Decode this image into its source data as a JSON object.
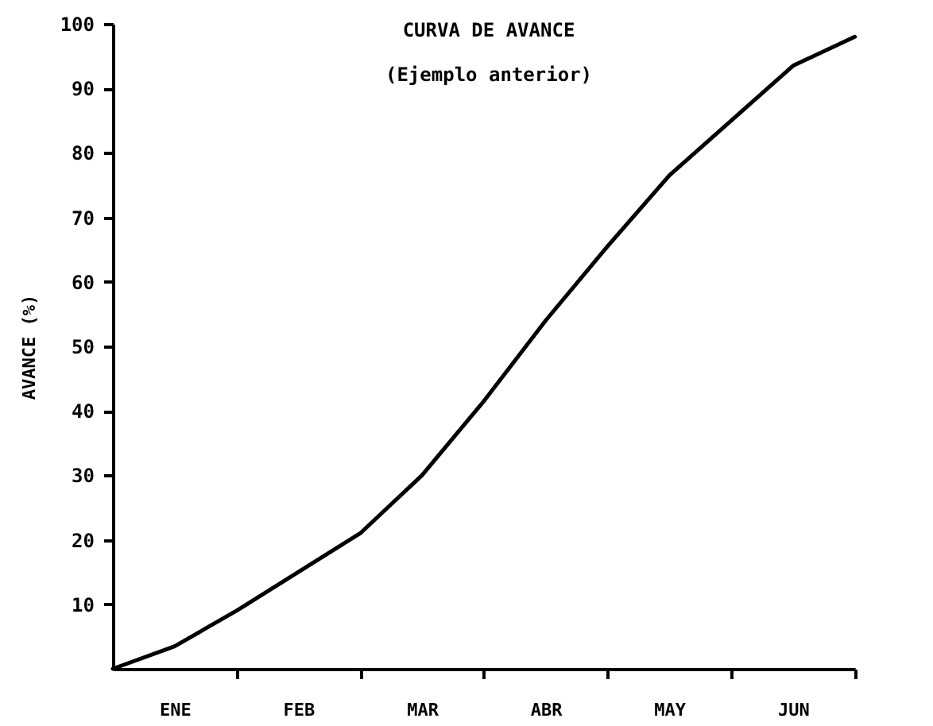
{
  "chart_data": {
    "type": "line",
    "title": "CURVA DE AVANCE",
    "subtitle": "(Ejemplo anterior)",
    "ylabel": "AVANCE     (%)",
    "categories": [
      null,
      "ENE",
      null,
      "FEB",
      null,
      "MAR",
      null,
      "ABR",
      null,
      "MAY",
      null,
      "JUN",
      null
    ],
    "series": [
      {
        "color": "#000000",
        "values": [
          0,
          3.5,
          9,
          15,
          21,
          30,
          41.5,
          54,
          65.5,
          76.5,
          85,
          93.5,
          98
        ]
      }
    ],
    "ylim": [
      0,
      100
    ],
    "yticks": [
      10,
      20,
      30,
      40,
      50,
      60,
      70,
      80,
      90,
      100
    ],
    "grid": false,
    "marker": "none",
    "line_style": "solid"
  }
}
